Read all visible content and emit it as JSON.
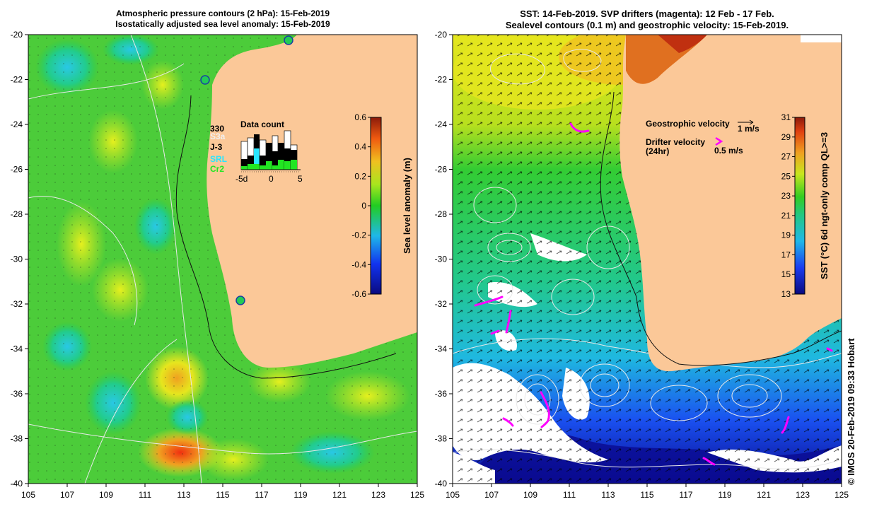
{
  "left_panel": {
    "title_line1": "Atmospheric pressure contours (2 hPa): 15-Feb-2019",
    "title_line2": "Isostatically adjusted sea level anomaly: 15-Feb-2019",
    "lat_ticks": [
      "-20",
      "-22",
      "-24",
      "-26",
      "-28",
      "-30",
      "-32",
      "-34",
      "-36",
      "-38",
      "-40"
    ],
    "lon_ticks": [
      "105",
      "107",
      "109",
      "111",
      "113",
      "115",
      "117",
      "119",
      "121",
      "123",
      "125"
    ],
    "colorbar": {
      "label": "Sea level anomaly (m)",
      "ticks": [
        "0.6",
        "0.4",
        "0.2",
        "0",
        "-0.2",
        "-0.4",
        "-0.6"
      ]
    },
    "data_count": {
      "title": "Data count",
      "total": "330",
      "sources": [
        {
          "name": "S3a",
          "color": "#ffffff"
        },
        {
          "name": "J-3",
          "color": "#000000"
        },
        {
          "name": "SRL",
          "color": "#29e6ff"
        },
        {
          "name": "Cr2",
          "color": "#22e622"
        }
      ],
      "x_ticks": [
        "-5d",
        "0",
        "5"
      ]
    }
  },
  "right_panel": {
    "title_line1": "SST: 14-Feb-2019. SVP drifters (magenta): 12 Feb - 17 Feb.",
    "title_line2": "Sealevel contours (0.1 m) and geostrophic velocity: 15-Feb-2019.",
    "lat_ticks": [
      "-20",
      "-22",
      "-24",
      "-26",
      "-28",
      "-30",
      "-32",
      "-34",
      "-36",
      "-38",
      "-40"
    ],
    "lon_ticks": [
      "105",
      "107",
      "109",
      "111",
      "113",
      "115",
      "117",
      "119",
      "121",
      "123",
      "125"
    ],
    "colorbar": {
      "label": "SST (°C) 6d ngt-only comp QL>=3",
      "ticks": [
        "31",
        "29",
        "27",
        "25",
        "23",
        "21",
        "19",
        "17",
        "15",
        "13"
      ]
    },
    "legend": {
      "geo_label": "Geostrophic velocity",
      "geo_scale": "1 m/s",
      "drifter_label_line1": "Drifter velocity",
      "drifter_label_line2": "(24hr)",
      "drifter_scale": "0.5 m/s"
    }
  },
  "credit": "© IMOS 20-Feb-2019 09:33 Hobart",
  "colors": {
    "land": "#fbc898",
    "sla_mid": "#33cc33",
    "drifter": "#ff00ff"
  }
}
